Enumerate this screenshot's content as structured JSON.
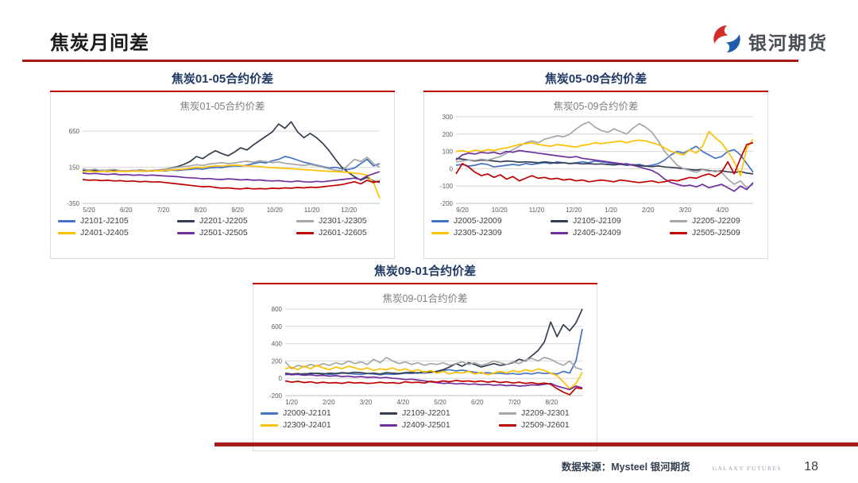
{
  "page": {
    "title": "焦炭月间差",
    "logo_text": "银河期货",
    "footer_source": "数据来源：Mysteel 银河期货",
    "footer_brand": "GALAXY FUTURES",
    "page_number": "18"
  },
  "colors": {
    "accent_red": "#C00000",
    "rule_red": "#A61B1B",
    "header_blue": "#1F3864",
    "grid_gray": "#D9D9D9",
    "axis_gray": "#BFBFBF",
    "tick_text": "#595959"
  },
  "chart_data": [
    {
      "type": "line",
      "section_title": "焦炭01-05合约价差",
      "title": "焦炭01-05合约价差",
      "x_ticks": [
        "5/20",
        "6/20",
        "7/20",
        "8/20",
        "9/20",
        "10/20",
        "11/20",
        "12/20"
      ],
      "ylim": [
        -350,
        850
      ],
      "y_ticks": [
        650,
        150,
        -350
      ],
      "legend_position": "bottom",
      "grid": true,
      "series": [
        {
          "name": "J2101-J2105",
          "color": "#4472C4",
          "values": [
            110,
            105,
            100,
            108,
            102,
            105,
            100,
            98,
            104,
            100,
            96,
            102,
            105,
            100,
            110,
            105,
            115,
            120,
            130,
            125,
            140,
            150,
            145,
            160,
            170,
            165,
            180,
            200,
            220,
            210,
            240,
            260,
            300,
            280,
            250,
            220,
            200,
            180,
            160,
            140,
            150,
            130,
            120,
            140,
            200,
            260,
            170,
            200
          ]
        },
        {
          "name": "J2201-J2205",
          "color": "#333F50",
          "values": [
            100,
            95,
            110,
            100,
            90,
            105,
            100,
            95,
            100,
            110,
            105,
            100,
            110,
            120,
            140,
            160,
            190,
            230,
            300,
            270,
            330,
            380,
            340,
            310,
            360,
            420,
            390,
            460,
            520,
            580,
            640,
            750,
            690,
            780,
            640,
            560,
            620,
            560,
            480,
            380,
            260,
            150,
            80,
            20,
            -30,
            10,
            -40,
            -60
          ]
        },
        {
          "name": "J2301-J2305",
          "color": "#A6A6A6",
          "values": [
            130,
            110,
            125,
            100,
            115,
            120,
            105,
            100,
            110,
            105,
            100,
            108,
            115,
            125,
            135,
            150,
            160,
            170,
            185,
            175,
            195,
            205,
            215,
            200,
            210,
            225,
            235,
            220,
            240,
            230,
            215,
            225,
            205,
            195,
            185,
            175,
            190,
            170,
            150,
            130,
            110,
            100,
            180,
            260,
            230,
            290,
            200,
            150
          ]
        },
        {
          "name": "J2401-J2405",
          "color": "#FFC000",
          "values": [
            90,
            95,
            88,
            92,
            96,
            90,
            95,
            92,
            98,
            95,
            100,
            105,
            100,
            108,
            112,
            118,
            125,
            135,
            150,
            145,
            160,
            170,
            165,
            175,
            180,
            175,
            170,
            165,
            160,
            150,
            145,
            140,
            135,
            130,
            125,
            118,
            112,
            105,
            100,
            95,
            90,
            85,
            80,
            70,
            60,
            40,
            -60,
            -280
          ]
        },
        {
          "name": "J2501-J2505",
          "color": "#7030A0",
          "values": [
            70,
            60,
            65,
            55,
            50,
            58,
            45,
            50,
            40,
            45,
            38,
            42,
            35,
            30,
            25,
            20,
            10,
            5,
            0,
            -10,
            -5,
            -15,
            -20,
            -10,
            -15,
            -25,
            -20,
            -30,
            -25,
            -35,
            -40,
            -35,
            -45,
            -50,
            -40,
            -50,
            -55,
            -45,
            -50,
            -40,
            -30,
            -20,
            -10,
            0,
            -20,
            30,
            60,
            90
          ]
        },
        {
          "name": "J2601-J2605",
          "color": "#C00000",
          "values": [
            -20,
            -30,
            -25,
            -35,
            -30,
            -40,
            -35,
            -45,
            -40,
            -50,
            -45,
            -55,
            -50,
            -60,
            -70,
            -80,
            -90,
            -100,
            -110,
            -120,
            -115,
            -130,
            -140,
            -135,
            -145,
            -150,
            -140,
            -150,
            -145,
            -150,
            -140,
            -145,
            -135,
            -140,
            -130,
            -135,
            -125,
            -130,
            -120,
            -110,
            -100,
            -90,
            -70,
            -50,
            -80,
            -30,
            -60,
            -40
          ]
        }
      ]
    },
    {
      "type": "line",
      "section_title": "焦炭05-09合约价差",
      "title": "焦炭05-09合约价差",
      "x_ticks": [
        "9/20",
        "10/20",
        "11/20",
        "12/20",
        "1/20",
        "2/20",
        "3/20",
        "4/20"
      ],
      "ylim": [
        -200,
        300
      ],
      "y_ticks": [
        300,
        200,
        100,
        0,
        -100,
        -200
      ],
      "legend_position": "bottom",
      "grid": true,
      "series": [
        {
          "name": "J2005-J2009",
          "color": "#4472C4",
          "values": [
            20,
            25,
            15,
            20,
            30,
            25,
            10,
            15,
            20,
            25,
            20,
            30,
            25,
            30,
            35,
            30,
            40,
            35,
            30,
            35,
            40,
            35,
            45,
            40,
            35,
            30,
            25,
            30,
            20,
            25,
            15,
            20,
            30,
            50,
            80,
            100,
            90,
            110,
            130,
            100,
            80,
            60,
            70,
            100,
            110,
            80,
            30,
            -20
          ]
        },
        {
          "name": "J2105-J2109",
          "color": "#333F50",
          "values": [
            60,
            55,
            50,
            45,
            50,
            48,
            45,
            40,
            45,
            42,
            38,
            40,
            38,
            35,
            40,
            36,
            32,
            35,
            30,
            32,
            28,
            30,
            26,
            28,
            25,
            22,
            26,
            20,
            24,
            18,
            15,
            12,
            16,
            10,
            8,
            5,
            0,
            -5,
            -8,
            -4,
            -10,
            -15,
            -12,
            -18,
            -22,
            -16,
            -25,
            -30
          ]
        },
        {
          "name": "J2205-J2209",
          "color": "#A6A6A6",
          "values": [
            40,
            45,
            50,
            48,
            55,
            50,
            60,
            70,
            90,
            110,
            130,
            150,
            160,
            150,
            170,
            180,
            190,
            185,
            200,
            230,
            255,
            270,
            240,
            220,
            210,
            230,
            215,
            200,
            235,
            260,
            240,
            210,
            160,
            100,
            60,
            20,
            0,
            -10,
            -20,
            -5,
            -15,
            -10,
            -20,
            -60,
            -90,
            -70,
            -110,
            -90
          ]
        },
        {
          "name": "J2305-J2309",
          "color": "#FFC000",
          "values": [
            100,
            105,
            95,
            108,
            100,
            110,
            105,
            115,
            120,
            130,
            140,
            145,
            150,
            140,
            135,
            130,
            140,
            135,
            130,
            125,
            135,
            140,
            150,
            145,
            150,
            155,
            160,
            150,
            160,
            165,
            160,
            150,
            140,
            120,
            100,
            90,
            80,
            110,
            90,
            130,
            215,
            180,
            150,
            100,
            40,
            -40,
            120,
            170
          ]
        },
        {
          "name": "J2405-J2409",
          "color": "#7030A0",
          "values": [
            50,
            80,
            90,
            85,
            95,
            90,
            95,
            85,
            100,
            95,
            105,
            100,
            95,
            90,
            85,
            80,
            75,
            70,
            65,
            70,
            60,
            55,
            50,
            45,
            40,
            35,
            30,
            25,
            20,
            10,
            0,
            -10,
            -30,
            -60,
            -80,
            -90,
            -100,
            -95,
            -105,
            -90,
            -110,
            -100,
            -90,
            -110,
            -130,
            -100,
            -120,
            -80
          ]
        },
        {
          "name": "J2505-J2509",
          "color": "#C00000",
          "values": [
            -30,
            30,
            10,
            -20,
            -40,
            -30,
            -50,
            -35,
            -60,
            -45,
            -70,
            -55,
            -40,
            -55,
            -50,
            -60,
            -55,
            -65,
            -60,
            -70,
            -65,
            -75,
            -70,
            -65,
            -70,
            -75,
            -65,
            -70,
            -75,
            -80,
            -75,
            -70,
            -80,
            -75,
            -65,
            -70,
            -60,
            -50,
            -55,
            -40,
            -30,
            -45,
            -20,
            40,
            -30,
            60,
            140,
            150
          ]
        }
      ]
    },
    {
      "type": "line",
      "section_title": "焦炭09-01合约价差",
      "title": "焦炭09-01合约价差",
      "x_ticks": [
        "1/20",
        "2/20",
        "3/20",
        "4/20",
        "5/20",
        "6/20",
        "7/20",
        "8/20"
      ],
      "ylim": [
        -200,
        800
      ],
      "y_ticks": [
        800,
        600,
        400,
        200,
        0,
        -200
      ],
      "legend_position": "bottom",
      "grid": true,
      "series": [
        {
          "name": "J2009-J2101",
          "color": "#4472C4",
          "values": [
            40,
            50,
            45,
            55,
            50,
            60,
            55,
            45,
            50,
            60,
            55,
            50,
            45,
            55,
            50,
            40,
            50,
            45,
            50,
            60,
            55,
            65,
            60,
            70,
            80,
            90,
            100,
            85,
            95,
            80,
            70,
            60,
            65,
            55,
            60,
            50,
            55,
            45,
            60,
            50,
            65,
            55,
            60,
            50,
            80,
            60,
            200,
            570
          ]
        },
        {
          "name": "J2109-J2201",
          "color": "#333F50",
          "values": [
            60,
            50,
            55,
            45,
            60,
            55,
            50,
            60,
            55,
            65,
            60,
            70,
            65,
            55,
            60,
            50,
            65,
            60,
            55,
            65,
            70,
            60,
            75,
            70,
            80,
            100,
            130,
            170,
            140,
            180,
            160,
            130,
            150,
            170,
            150,
            160,
            180,
            220,
            200,
            260,
            320,
            420,
            650,
            480,
            620,
            550,
            640,
            800
          ]
        },
        {
          "name": "J2209-J2301",
          "color": "#A6A6A6",
          "values": [
            190,
            110,
            150,
            130,
            160,
            140,
            170,
            150,
            180,
            160,
            200,
            170,
            190,
            160,
            220,
            180,
            240,
            200,
            170,
            190,
            160,
            180,
            150,
            170,
            160,
            180,
            150,
            170,
            190,
            160,
            180,
            150,
            170,
            200,
            180,
            160,
            190,
            170,
            210,
            230,
            200,
            240,
            220,
            180,
            150,
            200,
            120,
            100
          ]
        },
        {
          "name": "J2309-J2401",
          "color": "#FFC000",
          "values": [
            110,
            130,
            100,
            140,
            110,
            150,
            120,
            100,
            130,
            110,
            140,
            120,
            100,
            120,
            90,
            110,
            100,
            120,
            90,
            110,
            80,
            100,
            70,
            90,
            60,
            80,
            50,
            70,
            60,
            80,
            50,
            70,
            40,
            60,
            80,
            60,
            90,
            70,
            100,
            80,
            110,
            90,
            60,
            30,
            -40,
            -120,
            -60,
            70
          ]
        },
        {
          "name": "J2409-J2501",
          "color": "#7030A0",
          "values": [
            50,
            40,
            45,
            35,
            40,
            30,
            35,
            25,
            30,
            20,
            25,
            15,
            20,
            10,
            15,
            5,
            10,
            0,
            -5,
            -15,
            -10,
            -20,
            -30,
            -40,
            -50,
            -60,
            -55,
            -65,
            -60,
            -70,
            -65,
            -75,
            -70,
            -80,
            -75,
            -85,
            -80,
            -90,
            -85,
            -75,
            -80,
            -70,
            -60,
            -90,
            -110,
            -130,
            -90,
            -110
          ]
        },
        {
          "name": "J2509-J2601",
          "color": "#C00000",
          "values": [
            -30,
            -45,
            -35,
            -50,
            -40,
            -55,
            -45,
            -55,
            -50,
            -60,
            -45,
            -55,
            -50,
            -60,
            -55,
            -45,
            -55,
            -50,
            -60,
            -40,
            -50,
            -45,
            -55,
            -35,
            -45,
            -30,
            -40,
            -25,
            -35,
            -30,
            -40,
            -30,
            -45,
            -35,
            -50,
            -40,
            -55,
            -45,
            -60,
            -50,
            -65,
            -55,
            -70,
            -120,
            -160,
            -190,
            -110,
            -120
          ]
        }
      ]
    }
  ]
}
